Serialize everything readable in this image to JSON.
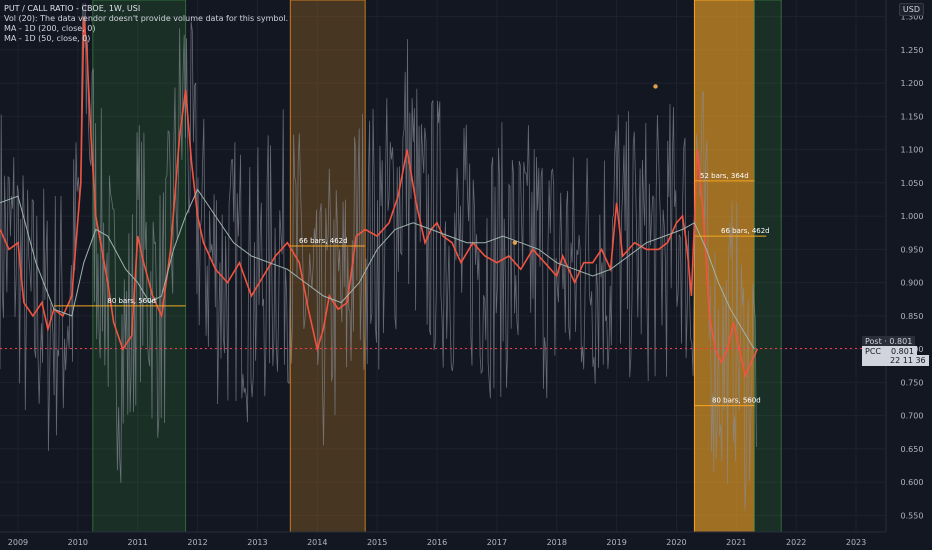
{
  "legend": {
    "title": "PUT / CALL RATIO - CBOE, 1W, USI",
    "vol": "Vol (20): The data vendor doesn't provide volume data for this symbol.",
    "ma200": "MA - 1D (200, close, 0)",
    "ma50": "MA - 1D (50, close, 0)"
  },
  "currency": "USD",
  "price_tags": {
    "post_label": "Post",
    "post_value": "0.801",
    "pcc_label": "PCC",
    "pcc_value": "0.801",
    "countdown": "22 11 36"
  },
  "colors": {
    "background": "#131722",
    "price_line": "#8a8d96",
    "ma_fast": "#f05440",
    "ma_slow": "#9fb3ad",
    "green_zone": "rgba(56,142,60,0.22)",
    "orange_zone": "rgba(183,120,34,0.32)",
    "gold_zone": "rgba(245,166,35,0.62)",
    "dotted_line": "#f23645"
  },
  "chart_data": {
    "type": "line",
    "title": "PUT / CALL RATIO - CBOE, 1W, USI",
    "xlim": [
      2008.7,
      2023.5
    ],
    "ylim": [
      0.525,
      1.325
    ],
    "x_ticks": [
      2009,
      2010,
      2011,
      2012,
      2013,
      2014,
      2015,
      2016,
      2017,
      2018,
      2019,
      2020,
      2021,
      2022,
      2023
    ],
    "x_tick_labels": [
      "2009",
      "2010",
      "2011",
      "2012",
      "2013",
      "2014",
      "2015",
      "2016",
      "2017",
      "2018",
      "2019",
      "2020",
      "2021",
      "2022",
      "2023"
    ],
    "y_ticks": [
      0.55,
      0.6,
      0.65,
      0.7,
      0.75,
      0.8,
      0.85,
      0.9,
      0.95,
      1.0,
      1.05,
      1.1,
      1.15,
      1.2,
      1.25,
      1.3
    ],
    "y_tick_labels": [
      "0.550",
      "0.600",
      "0.650",
      "0.700",
      "0.750",
      "0.800",
      "0.850",
      "0.900",
      "0.950",
      "1.000",
      "1.050",
      "1.100",
      "1.150",
      "1.200",
      "1.250",
      "1.300"
    ],
    "last_value": 0.801,
    "series": [
      {
        "name": "MA - 1D (50, close, 0)",
        "x": [
          2008.7,
          2008.85,
          2009.0,
          2009.1,
          2009.25,
          2009.4,
          2009.5,
          2009.6,
          2009.75,
          2009.9,
          2010.05,
          2010.1,
          2010.15,
          2010.22,
          2010.3,
          2010.4,
          2010.5,
          2010.6,
          2010.75,
          2010.9,
          2011.0,
          2011.1,
          2011.25,
          2011.4,
          2011.55,
          2011.7,
          2011.8,
          2011.9,
          2012.0,
          2012.1,
          2012.3,
          2012.5,
          2012.7,
          2012.9,
          2013.1,
          2013.3,
          2013.5,
          2013.7,
          2013.85,
          2014.0,
          2014.1,
          2014.2,
          2014.35,
          2014.5,
          2014.65,
          2014.8,
          2015.0,
          2015.2,
          2015.35,
          2015.5,
          2015.65,
          2015.8,
          2015.9,
          2016.0,
          2016.1,
          2016.25,
          2016.4,
          2016.6,
          2016.8,
          2017.0,
          2017.2,
          2017.4,
          2017.6,
          2017.8,
          2018.0,
          2018.1,
          2018.2,
          2018.3,
          2018.45,
          2018.6,
          2018.75,
          2018.9,
          2019.0,
          2019.1,
          2019.3,
          2019.5,
          2019.7,
          2019.85,
          2020.0,
          2020.1,
          2020.15,
          2020.2,
          2020.25,
          2020.35,
          2020.45,
          2020.55,
          2020.65,
          2020.75,
          2020.85,
          2020.95,
          2021.05,
          2021.15,
          2021.25,
          2021.35
        ],
        "values": [
          0.98,
          0.95,
          0.96,
          0.87,
          0.85,
          0.87,
          0.83,
          0.86,
          0.85,
          0.88,
          1.05,
          1.3,
          1.25,
          1.12,
          1.0,
          0.95,
          0.9,
          0.84,
          0.8,
          0.82,
          0.97,
          0.93,
          0.88,
          0.85,
          0.95,
          1.12,
          1.19,
          1.08,
          1.0,
          0.96,
          0.92,
          0.9,
          0.93,
          0.88,
          0.91,
          0.94,
          0.96,
          0.93,
          0.86,
          0.8,
          0.83,
          0.88,
          0.86,
          0.87,
          0.97,
          0.98,
          0.97,
          0.99,
          1.03,
          1.1,
          1.02,
          0.96,
          0.98,
          0.99,
          0.97,
          0.96,
          0.93,
          0.96,
          0.94,
          0.93,
          0.94,
          0.92,
          0.95,
          0.93,
          0.91,
          0.94,
          0.92,
          0.9,
          0.93,
          0.93,
          0.95,
          0.92,
          1.02,
          0.94,
          0.96,
          0.95,
          0.95,
          0.96,
          0.99,
          1.0,
          0.97,
          0.93,
          0.88,
          1.1,
          1.0,
          0.85,
          0.8,
          0.78,
          0.8,
          0.84,
          0.8,
          0.76,
          0.78,
          0.8
        ]
      },
      {
        "name": "MA - 1D (200, close, 0)",
        "x": [
          2008.7,
          2009.0,
          2009.3,
          2009.6,
          2009.9,
          2010.1,
          2010.3,
          2010.5,
          2010.8,
          2011.0,
          2011.2,
          2011.4,
          2011.6,
          2011.8,
          2012.0,
          2012.3,
          2012.6,
          2012.9,
          2013.2,
          2013.5,
          2013.8,
          2014.1,
          2014.4,
          2014.7,
          2015.0,
          2015.3,
          2015.6,
          2015.9,
          2016.2,
          2016.5,
          2016.8,
          2017.1,
          2017.4,
          2017.7,
          2018.0,
          2018.3,
          2018.6,
          2018.9,
          2019.2,
          2019.5,
          2019.8,
          2020.1,
          2020.3,
          2020.5,
          2020.7,
          2020.9,
          2021.1,
          2021.3
        ],
        "values": [
          1.02,
          1.03,
          0.93,
          0.86,
          0.85,
          0.93,
          0.98,
          0.97,
          0.92,
          0.9,
          0.87,
          0.88,
          0.95,
          1.0,
          1.04,
          1.0,
          0.96,
          0.94,
          0.93,
          0.92,
          0.9,
          0.88,
          0.87,
          0.9,
          0.95,
          0.98,
          0.99,
          0.98,
          0.97,
          0.96,
          0.96,
          0.97,
          0.96,
          0.95,
          0.93,
          0.92,
          0.91,
          0.92,
          0.94,
          0.96,
          0.97,
          0.98,
          0.99,
          0.95,
          0.9,
          0.86,
          0.83,
          0.8
        ]
      }
    ],
    "zones": [
      {
        "start": 2010.25,
        "end": 2011.8,
        "bottom": 0.525,
        "top": 1.325,
        "style": "green"
      },
      {
        "start": 2013.55,
        "end": 2014.8,
        "bottom": 0.525,
        "top": 1.325,
        "style": "orange"
      },
      {
        "start": 2020.3,
        "end": 2021.3,
        "bottom": 0.525,
        "top": 1.325,
        "style": "gold"
      },
      {
        "start": 2021.3,
        "end": 2021.75,
        "bottom": 0.525,
        "top": 1.325,
        "style": "green"
      }
    ],
    "measures": [
      {
        "label": "80 bars, 560d",
        "x": 2010.9,
        "value": 0.865,
        "start": 2009.6,
        "end": 2011.8
      },
      {
        "label": "66 bars, 462d",
        "x": 2014.1,
        "value": 0.955,
        "start": 2013.55,
        "end": 2014.8
      },
      {
        "label": "52 bars, 364d",
        "x": 2020.8,
        "value": 1.053,
        "start": 2020.3,
        "end": 2021.3
      },
      {
        "label": "66 bars, 462d",
        "x": 2021.15,
        "value": 0.97,
        "start": 2020.3,
        "end": 2021.5
      },
      {
        "label": "80 bars, 560d",
        "x": 2021.0,
        "value": 0.715,
        "start": 2020.3,
        "end": 2021.3
      }
    ],
    "markers": [
      {
        "x": 2019.65,
        "value": 1.195
      },
      {
        "x": 2017.3,
        "value": 0.96
      }
    ]
  }
}
